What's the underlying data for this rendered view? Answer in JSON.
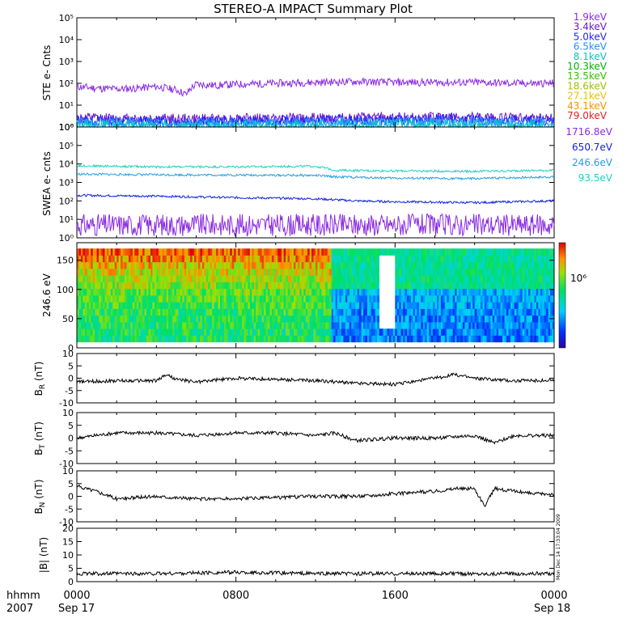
{
  "title": "STEREO-A IMPACT Summary Plot",
  "footer": {
    "x_unit": "hhmm",
    "year": "2007",
    "stamp": "Mon Dec 14 17:33:04 2009"
  },
  "chart_data": [
    {
      "type": "line",
      "id": "ste",
      "ylabel": "STE e- Cnts",
      "yscale": "log",
      "ylim": [
        1,
        100000
      ],
      "ytick_labels": [
        "10⁰",
        "10¹",
        "10²",
        "10³",
        "10⁴",
        "10⁵"
      ],
      "xlim": [
        0,
        24
      ],
      "x_ticks": [
        0,
        8,
        16,
        24
      ],
      "x_tick_labels": [
        "0000",
        "0800",
        "1600",
        "0000"
      ],
      "series": [
        {
          "name": "1.9keV",
          "color": "#8a2be2",
          "x": [
            0,
            1,
            2,
            3,
            4,
            5,
            5.5,
            6,
            7,
            8,
            10,
            12,
            14,
            16,
            18,
            20,
            22,
            24
          ],
          "values": [
            70,
            60,
            55,
            60,
            70,
            50,
            30,
            90,
            80,
            90,
            100,
            110,
            120,
            110,
            110,
            110,
            100,
            100
          ]
        },
        {
          "name": "3.4keV",
          "color": "#6a1ac8",
          "x": [
            0,
            6,
            12,
            18,
            24
          ],
          "values": [
            2.5,
            2.3,
            2.5,
            2.7,
            2.5
          ]
        },
        {
          "name": "5.0keV",
          "color": "#2222ff",
          "x": [
            0,
            6,
            12,
            18,
            24
          ],
          "values": [
            2.0,
            1.8,
            2.0,
            2.2,
            2.0
          ]
        },
        {
          "name": "6.5keV",
          "color": "#1e90ff",
          "x": [
            0,
            6,
            12,
            18,
            24
          ],
          "values": [
            1.5,
            1.4,
            1.5,
            1.6,
            1.5
          ]
        },
        {
          "name": "8.1keV",
          "color": "#00c8c8",
          "x": [
            0,
            6,
            12,
            18,
            24
          ],
          "values": [
            1.2,
            1.1,
            1.2,
            1.3,
            1.2
          ]
        },
        {
          "name": "10.3keV",
          "color": "#00b400"
        },
        {
          "name": "13.5keV",
          "color": "#30c000"
        },
        {
          "name": "18.6keV",
          "color": "#a0c000"
        },
        {
          "name": "27.1keV",
          "color": "#e8c000"
        },
        {
          "name": "43.1keV",
          "color": "#ff8c00"
        },
        {
          "name": "79.0keV",
          "color": "#e02020"
        }
      ]
    },
    {
      "type": "line",
      "id": "swea",
      "ylabel": "SWEA e- cnts",
      "yscale": "log",
      "ylim": [
        1,
        1000000
      ],
      "ytick_labels": [
        "10⁰",
        "10¹",
        "10²",
        "10³",
        "10⁴",
        "10⁵",
        "10⁶"
      ],
      "xlim": [
        0,
        24
      ],
      "series": [
        {
          "name": "1716.8eV",
          "color": "#8a2be2",
          "x": [
            0,
            6,
            12,
            18,
            24
          ],
          "values": [
            5,
            5,
            5,
            5,
            5
          ]
        },
        {
          "name": "650.7eV",
          "color": "#1020e0",
          "x": [
            0,
            4,
            8,
            12,
            14,
            16,
            18,
            20,
            22,
            24
          ],
          "values": [
            200,
            180,
            150,
            130,
            100,
            90,
            85,
            80,
            90,
            100
          ]
        },
        {
          "name": "246.6eV",
          "color": "#20a0e0",
          "x": [
            0,
            4,
            8,
            12,
            13,
            16,
            20,
            24
          ],
          "values": [
            2800,
            2600,
            2500,
            2400,
            2000,
            1700,
            1600,
            2000
          ]
        },
        {
          "name": "93.5eV",
          "color": "#20d0c0",
          "x": [
            0,
            4,
            8,
            12,
            13,
            16,
            20,
            24
          ],
          "values": [
            8000,
            7000,
            7000,
            7500,
            4500,
            4200,
            4000,
            4500
          ]
        }
      ]
    },
    {
      "type": "heatmap",
      "id": "pad",
      "ylabel": "246.6 eV",
      "ylim": [
        0,
        180
      ],
      "ytick_labels": [
        "0",
        "50",
        "100",
        "150"
      ],
      "xlim": [
        0,
        24
      ],
      "colorbar_label": "10⁶",
      "regions": [
        {
          "x": [
            0,
            12.8
          ],
          "level": 0.55,
          "top_level": 0.9
        },
        {
          "x": [
            12.8,
            24
          ],
          "level": 0.25,
          "top_level": 0.5
        },
        {
          "x": [
            15.2,
            16.0
          ],
          "level": 0.2,
          "gap": true
        }
      ]
    },
    {
      "type": "line",
      "id": "br",
      "ylabel": "B_R (nT)",
      "ylim": [
        -10,
        10
      ],
      "ytick_labels": [
        "10",
        "5",
        "0",
        "-5",
        "-10"
      ],
      "xlim": [
        0,
        24
      ],
      "series": [
        {
          "color": "#000000",
          "x": [
            0,
            2,
            4,
            4.5,
            5,
            6,
            8,
            10,
            12,
            14,
            16,
            18,
            19,
            20,
            22,
            24
          ],
          "values": [
            -1.5,
            -1,
            -1,
            1.5,
            -0.5,
            -1.5,
            0,
            -0.5,
            -1,
            -2,
            -2.5,
            0,
            1.5,
            0,
            -1,
            -1
          ]
        }
      ]
    },
    {
      "type": "line",
      "id": "bt",
      "ylabel": "B_T (nT)",
      "ylim": [
        -10,
        10
      ],
      "ytick_labels": [
        "10",
        "5",
        "0",
        "-5",
        "-10"
      ],
      "xlim": [
        0,
        24
      ],
      "series": [
        {
          "color": "#000000",
          "x": [
            0,
            2,
            4,
            6,
            8,
            10,
            12,
            13,
            14,
            16,
            18,
            20,
            21,
            22,
            24
          ],
          "values": [
            0,
            2,
            2,
            1,
            2,
            2,
            1,
            2,
            -1,
            0,
            0,
            1,
            -2,
            1,
            1
          ]
        }
      ]
    },
    {
      "type": "line",
      "id": "bn",
      "ylabel": "B_N (nT)",
      "ylim": [
        -10,
        10
      ],
      "ytick_labels": [
        "10",
        "5",
        "0",
        "-5",
        "-10"
      ],
      "xlim": [
        0,
        24
      ],
      "series": [
        {
          "color": "#000000",
          "x": [
            0,
            1,
            2,
            4,
            6,
            8,
            10,
            12,
            14,
            16,
            18,
            19,
            20,
            20.5,
            21,
            22,
            23,
            24
          ],
          "values": [
            4,
            2,
            -1,
            0,
            -1,
            -1,
            -0.5,
            0,
            0,
            1,
            2,
            3,
            3,
            -4,
            3,
            2,
            1,
            1
          ]
        }
      ]
    },
    {
      "type": "line",
      "id": "bmag",
      "ylabel": "|B| (nT)",
      "ylim": [
        0,
        20
      ],
      "ytick_labels": [
        "20",
        "15",
        "10",
        "5",
        "0"
      ],
      "xlim": [
        0,
        24
      ],
      "series": [
        {
          "color": "#000000",
          "x": [
            0,
            4,
            8,
            12,
            16,
            20,
            24
          ],
          "values": [
            3,
            3,
            3.5,
            3,
            3,
            3,
            3
          ]
        }
      ]
    }
  ],
  "x_axis": {
    "ticks": [
      0,
      8,
      16,
      24
    ],
    "tick_labels": [
      "0000",
      "0800",
      "1600",
      "0000"
    ],
    "dates": [
      "Sep 17",
      "Sep 18"
    ]
  }
}
